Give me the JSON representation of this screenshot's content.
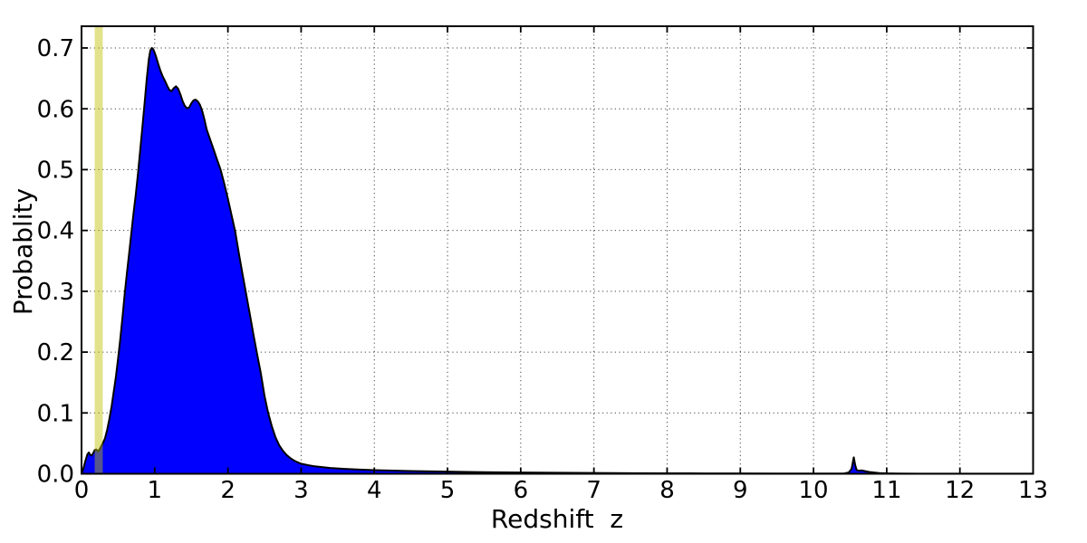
{
  "chart_data": {
    "type": "area",
    "title": "",
    "xlabel": "Redshift  z",
    "ylabel": "Probablity",
    "xlim": [
      0,
      13
    ],
    "ylim": [
      0,
      0.7357
    ],
    "xticks": [
      0,
      1,
      2,
      3,
      4,
      5,
      6,
      7,
      8,
      9,
      10,
      11,
      12,
      13
    ],
    "xtick_labels": [
      "0",
      "1",
      "2",
      "3",
      "4",
      "5",
      "6",
      "7",
      "8",
      "9",
      "10",
      "11",
      "12",
      "13"
    ],
    "yticks": [
      0.0,
      0.1,
      0.2,
      0.3,
      0.4,
      0.5,
      0.6,
      0.7
    ],
    "ytick_labels": [
      "0.0",
      "0.1",
      "0.2",
      "0.3",
      "0.4",
      "0.5",
      "0.6",
      "0.7"
    ],
    "grid": "dotted",
    "grid_color": "#444444",
    "frame_color": "#000000",
    "band": {
      "x0": 0.18,
      "x1": 0.29,
      "color": "#BFBF00",
      "alpha": 0.45
    },
    "series": [
      {
        "name": "probability_density",
        "fill_color": "#0000FF",
        "edge_color": "#000000",
        "points": [
          [
            0.0,
            0.0
          ],
          [
            0.02,
            0.006
          ],
          [
            0.05,
            0.02
          ],
          [
            0.08,
            0.032
          ],
          [
            0.1,
            0.035
          ],
          [
            0.12,
            0.031
          ],
          [
            0.14,
            0.03
          ],
          [
            0.16,
            0.034
          ],
          [
            0.18,
            0.039
          ],
          [
            0.2,
            0.04
          ],
          [
            0.23,
            0.037
          ],
          [
            0.26,
            0.043
          ],
          [
            0.29,
            0.05
          ],
          [
            0.32,
            0.058
          ],
          [
            0.35,
            0.072
          ],
          [
            0.38,
            0.09
          ],
          [
            0.41,
            0.11
          ],
          [
            0.44,
            0.135
          ],
          [
            0.47,
            0.16
          ],
          [
            0.5,
            0.19
          ],
          [
            0.53,
            0.222
          ],
          [
            0.56,
            0.258
          ],
          [
            0.59,
            0.296
          ],
          [
            0.62,
            0.33
          ],
          [
            0.65,
            0.362
          ],
          [
            0.68,
            0.395
          ],
          [
            0.71,
            0.428
          ],
          [
            0.74,
            0.458
          ],
          [
            0.77,
            0.492
          ],
          [
            0.8,
            0.53
          ],
          [
            0.83,
            0.568
          ],
          [
            0.86,
            0.607
          ],
          [
            0.89,
            0.648
          ],
          [
            0.92,
            0.682
          ],
          [
            0.94,
            0.696
          ],
          [
            0.96,
            0.7
          ],
          [
            0.98,
            0.698
          ],
          [
            1.0,
            0.692
          ],
          [
            1.02,
            0.685
          ],
          [
            1.05,
            0.673
          ],
          [
            1.08,
            0.662
          ],
          [
            1.11,
            0.653
          ],
          [
            1.14,
            0.646
          ],
          [
            1.17,
            0.638
          ],
          [
            1.2,
            0.631
          ],
          [
            1.23,
            0.629
          ],
          [
            1.26,
            0.634
          ],
          [
            1.29,
            0.637
          ],
          [
            1.32,
            0.633
          ],
          [
            1.35,
            0.624
          ],
          [
            1.38,
            0.613
          ],
          [
            1.41,
            0.605
          ],
          [
            1.44,
            0.601
          ],
          [
            1.47,
            0.602
          ],
          [
            1.5,
            0.609
          ],
          [
            1.53,
            0.614
          ],
          [
            1.56,
            0.615
          ],
          [
            1.59,
            0.612
          ],
          [
            1.62,
            0.606
          ],
          [
            1.65,
            0.596
          ],
          [
            1.68,
            0.582
          ],
          [
            1.71,
            0.566
          ],
          [
            1.75,
            0.552
          ],
          [
            1.8,
            0.535
          ],
          [
            1.85,
            0.517
          ],
          [
            1.9,
            0.5
          ],
          [
            1.95,
            0.477
          ],
          [
            2.0,
            0.452
          ],
          [
            2.05,
            0.425
          ],
          [
            2.1,
            0.398
          ],
          [
            2.15,
            0.362
          ],
          [
            2.2,
            0.328
          ],
          [
            2.25,
            0.295
          ],
          [
            2.3,
            0.262
          ],
          [
            2.35,
            0.228
          ],
          [
            2.4,
            0.196
          ],
          [
            2.45,
            0.165
          ],
          [
            2.5,
            0.128
          ],
          [
            2.55,
            0.1
          ],
          [
            2.6,
            0.078
          ],
          [
            2.65,
            0.06
          ],
          [
            2.7,
            0.047
          ],
          [
            2.75,
            0.038
          ],
          [
            2.8,
            0.031
          ],
          [
            2.85,
            0.026
          ],
          [
            2.9,
            0.022
          ],
          [
            2.95,
            0.019
          ],
          [
            3.0,
            0.0165
          ],
          [
            3.1,
            0.014
          ],
          [
            3.2,
            0.012
          ],
          [
            3.4,
            0.0095
          ],
          [
            3.6,
            0.008
          ],
          [
            3.8,
            0.0068
          ],
          [
            4.0,
            0.006
          ],
          [
            4.5,
            0.0045
          ],
          [
            5.0,
            0.0035
          ],
          [
            5.5,
            0.0027
          ],
          [
            6.0,
            0.0021
          ],
          [
            6.5,
            0.0017
          ],
          [
            7.0,
            0.0013
          ],
          [
            7.5,
            0.001
          ],
          [
            8.0,
            0.0008
          ],
          [
            8.5,
            0.0006
          ],
          [
            9.0,
            0.0005
          ],
          [
            9.5,
            0.0004
          ],
          [
            10.0,
            0.0004
          ],
          [
            10.3,
            0.0004
          ],
          [
            10.42,
            0.0006
          ],
          [
            10.48,
            0.002
          ],
          [
            10.52,
            0.008
          ],
          [
            10.55,
            0.027
          ],
          [
            10.57,
            0.014
          ],
          [
            10.59,
            0.006
          ],
          [
            10.62,
            0.005
          ],
          [
            10.66,
            0.0055
          ],
          [
            10.7,
            0.0045
          ],
          [
            10.76,
            0.003
          ],
          [
            10.83,
            0.002
          ],
          [
            10.9,
            0.0012
          ],
          [
            11.0,
            0.0007
          ],
          [
            11.15,
            0.0004
          ],
          [
            11.4,
            0.0002
          ],
          [
            11.8,
            0.0001
          ],
          [
            12.4,
            0.0001
          ],
          [
            13.0,
            0.0001
          ]
        ]
      }
    ]
  }
}
